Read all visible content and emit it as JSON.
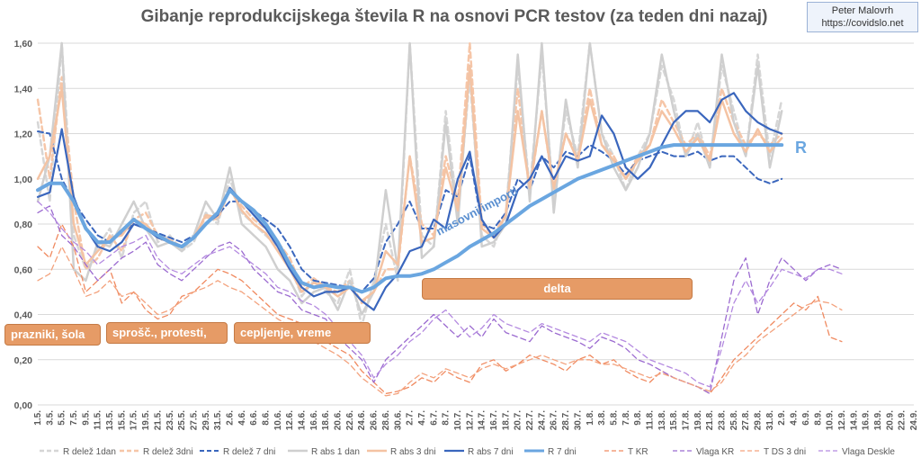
{
  "credit": {
    "name": "Peter Malovrh",
    "url": "https://covidslo.net"
  },
  "annotations": [
    {
      "label": "prazniki, šola"
    },
    {
      "label": "sprošč., protesti,"
    },
    {
      "label": "cepljenje, vreme"
    },
    {
      "label": "delta"
    },
    {
      "label": "masovni importi"
    }
  ],
  "chart_data": {
    "type": "line",
    "title": "Gibanje reprodukcijskega števila R na osnovi PCR testov (za teden dni nazaj)",
    "xlabel": "",
    "ylabel": "",
    "ylim": [
      0,
      1.6
    ],
    "yticks": [
      "0,00",
      "0,20",
      "0,40",
      "0,60",
      "0,80",
      "1,00",
      "1,20",
      "1,40",
      "1,60"
    ],
    "grid": true,
    "legend_position": "bottom",
    "end_label": "R",
    "categories": [
      "1.5.",
      "3.5.",
      "5.5.",
      "7.5.",
      "9.5.",
      "11.5.",
      "13.5.",
      "15.5.",
      "17.5.",
      "19.5.",
      "21.5.",
      "23.5.",
      "25.5.",
      "27.5.",
      "29.5.",
      "31.5.",
      "2.6.",
      "4.6.",
      "6.6.",
      "8.6.",
      "10.6.",
      "12.6.",
      "14.6.",
      "16.6.",
      "18.6.",
      "20.6.",
      "22.6.",
      "24.6.",
      "26.6.",
      "28.6.",
      "30.6.",
      "2.7.",
      "4.7.",
      "6.7.",
      "8.7.",
      "10.7.",
      "12.7.",
      "14.7.",
      "16.7.",
      "18.7.",
      "20.7.",
      "22.7.",
      "24.7.",
      "26.7.",
      "28.7.",
      "30.7.",
      "1.8.",
      "3.8.",
      "5.8.",
      "7.8.",
      "9.8.",
      "11.8.",
      "13.8.",
      "15.8.",
      "17.8.",
      "19.8.",
      "21.8.",
      "23.8.",
      "25.8.",
      "27.8.",
      "29.8.",
      "31.8.",
      "2.9.",
      "4.9.",
      "6.9.",
      "8.9.",
      "10.9.",
      "12.9.",
      "14.9.",
      "16.9.",
      "18.9.",
      "20.9.",
      "22.9.",
      "24.9."
    ],
    "series": [
      {
        "name": "R delež 1dan",
        "color": "#d6d6d6",
        "dash": "dash",
        "width": 2.5,
        "values": [
          1.25,
          0.9,
          1.6,
          0.75,
          0.6,
          0.7,
          0.78,
          0.65,
          0.85,
          0.9,
          0.72,
          0.75,
          0.68,
          0.72,
          0.85,
          0.8,
          1.0,
          0.85,
          0.8,
          0.75,
          0.7,
          0.62,
          0.48,
          0.55,
          0.5,
          0.45,
          0.6,
          0.35,
          0.55,
          0.8,
          0.55,
          1.6,
          0.75,
          0.7,
          1.3,
          0.85,
          1.45,
          0.75,
          0.7,
          0.85,
          1.5,
          0.95,
          1.55,
          0.9,
          1.3,
          1.1,
          1.6,
          1.2,
          1.1,
          0.95,
          1.1,
          1.2,
          1.5,
          1.35,
          1.1,
          1.25,
          1.05,
          1.5,
          1.3,
          1.1,
          1.55,
          1.1,
          1.35,
          null,
          null,
          null,
          null,
          null,
          null,
          null,
          null,
          null,
          null,
          null
        ]
      },
      {
        "name": "R delež 3dni",
        "color": "#f6c6a8",
        "dash": "dash",
        "width": 2.5,
        "values": [
          1.35,
          1.0,
          1.45,
          0.9,
          0.6,
          0.65,
          0.75,
          0.68,
          0.82,
          0.85,
          0.75,
          0.73,
          0.7,
          0.74,
          0.83,
          0.82,
          0.95,
          0.88,
          0.82,
          0.78,
          0.72,
          0.65,
          0.52,
          0.56,
          0.52,
          0.5,
          0.55,
          0.45,
          0.5,
          0.6,
          0.6,
          1.1,
          0.8,
          0.75,
          1.1,
          0.9,
          1.6,
          0.8,
          0.75,
          0.85,
          1.4,
          0.95,
          1.3,
          0.95,
          1.2,
          1.1,
          1.4,
          1.15,
          1.1,
          1.0,
          1.1,
          1.15,
          1.35,
          1.25,
          1.15,
          1.2,
          1.1,
          1.4,
          1.25,
          1.15,
          1.2,
          1.15,
          1.2,
          null,
          null,
          null,
          null,
          null,
          null,
          null,
          null,
          null,
          null,
          null
        ]
      },
      {
        "name": "R delež 7 dni",
        "color": "#3a66bd",
        "dash": "dash",
        "width": 2,
        "values": [
          1.21,
          1.2,
          1.0,
          0.9,
          0.82,
          0.75,
          0.72,
          0.76,
          0.8,
          0.78,
          0.76,
          0.74,
          0.72,
          0.75,
          0.8,
          0.84,
          0.9,
          0.9,
          0.86,
          0.82,
          0.78,
          0.7,
          0.6,
          0.55,
          0.54,
          0.53,
          0.52,
          0.5,
          0.56,
          0.72,
          0.8,
          0.9,
          0.78,
          0.78,
          0.95,
          0.92,
          1.1,
          0.8,
          0.78,
          0.85,
          1.0,
          0.95,
          1.1,
          1.05,
          1.12,
          1.1,
          1.15,
          1.12,
          1.08,
          1.02,
          1.08,
          1.1,
          1.12,
          1.1,
          1.1,
          1.12,
          1.08,
          1.1,
          1.1,
          1.05,
          1.0,
          0.98,
          1.0,
          null,
          null,
          null,
          null,
          null,
          null,
          null,
          null,
          null,
          null,
          null
        ]
      },
      {
        "name": "R abs 1 dan",
        "color": "#cfcfcf",
        "dash": "solid",
        "width": 2.5,
        "values": [
          0.9,
          1.1,
          1.6,
          0.6,
          0.55,
          0.72,
          0.7,
          0.8,
          0.9,
          0.78,
          0.7,
          0.72,
          0.68,
          0.75,
          0.9,
          0.82,
          1.05,
          0.8,
          0.75,
          0.7,
          0.6,
          0.55,
          0.45,
          0.5,
          0.52,
          0.42,
          0.55,
          0.4,
          0.5,
          0.95,
          0.6,
          1.6,
          0.65,
          0.7,
          1.25,
          0.8,
          1.5,
          0.7,
          0.72,
          0.8,
          1.55,
          0.9,
          1.6,
          0.85,
          1.35,
          1.05,
          1.6,
          1.2,
          1.05,
          0.95,
          1.05,
          1.2,
          1.55,
          1.3,
          1.1,
          1.2,
          1.05,
          1.55,
          1.25,
          1.1,
          1.5,
          1.05,
          1.3,
          null,
          null,
          null,
          null,
          null,
          null,
          null,
          null,
          null,
          null,
          null
        ]
      },
      {
        "name": "R abs 3 dni",
        "color": "#f4c3a3",
        "dash": "solid",
        "width": 2.5,
        "values": [
          1.0,
          1.1,
          1.4,
          0.8,
          0.62,
          0.68,
          0.74,
          0.75,
          0.82,
          0.8,
          0.74,
          0.72,
          0.7,
          0.74,
          0.84,
          0.83,
          0.96,
          0.86,
          0.8,
          0.76,
          0.68,
          0.6,
          0.5,
          0.54,
          0.52,
          0.48,
          0.52,
          0.46,
          0.5,
          0.68,
          0.62,
          1.1,
          0.72,
          0.74,
          1.05,
          0.86,
          1.5,
          0.78,
          0.74,
          0.84,
          1.3,
          0.96,
          1.3,
          0.96,
          1.2,
          1.08,
          1.35,
          1.15,
          1.08,
          1.0,
          1.08,
          1.15,
          1.3,
          1.22,
          1.12,
          1.18,
          1.08,
          1.35,
          1.2,
          1.12,
          1.22,
          1.12,
          1.18,
          null,
          null,
          null,
          null,
          null,
          null,
          null,
          null,
          null,
          null,
          null
        ]
      },
      {
        "name": "R abs 7 dni",
        "color": "#3a66bd",
        "dash": "solid",
        "width": 2.2,
        "values": [
          0.92,
          0.94,
          1.22,
          0.92,
          0.78,
          0.7,
          0.68,
          0.72,
          0.8,
          0.78,
          0.74,
          0.72,
          0.7,
          0.74,
          0.8,
          0.84,
          0.96,
          0.9,
          0.84,
          0.78,
          0.7,
          0.6,
          0.52,
          0.48,
          0.5,
          0.5,
          0.52,
          0.46,
          0.42,
          0.52,
          0.58,
          0.68,
          0.7,
          0.82,
          0.78,
          1.0,
          1.12,
          0.82,
          0.74,
          0.8,
          0.95,
          1.0,
          1.1,
          1.0,
          1.1,
          1.08,
          1.1,
          1.28,
          1.2,
          1.05,
          1.0,
          1.05,
          1.15,
          1.25,
          1.3,
          1.3,
          1.25,
          1.35,
          1.38,
          1.3,
          1.25,
          1.22,
          1.2,
          null,
          null,
          null,
          null,
          null,
          null,
          null,
          null,
          null,
          null,
          null
        ]
      },
      {
        "name": "R 7 dni",
        "color": "#6aa6e0",
        "dash": "solid",
        "width": 4,
        "values": [
          0.95,
          0.98,
          0.98,
          0.9,
          0.78,
          0.72,
          0.72,
          0.77,
          0.82,
          0.78,
          0.75,
          0.72,
          0.7,
          0.74,
          0.8,
          0.85,
          0.95,
          0.9,
          0.86,
          0.8,
          0.72,
          0.62,
          0.54,
          0.52,
          0.53,
          0.52,
          0.52,
          0.5,
          0.52,
          0.56,
          0.57,
          0.57,
          0.58,
          0.6,
          0.63,
          0.66,
          0.7,
          0.73,
          0.76,
          0.8,
          0.84,
          0.88,
          0.91,
          0.94,
          0.97,
          1.0,
          1.02,
          1.04,
          1.06,
          1.08,
          1.1,
          1.12,
          1.14,
          1.15,
          1.15,
          1.15,
          1.15,
          1.15,
          1.15,
          1.15,
          1.15,
          1.15,
          1.15,
          null,
          null,
          null,
          null,
          null,
          null,
          null,
          null,
          null,
          null,
          null
        ]
      },
      {
        "name": "T KR",
        "color": "#f08a60",
        "dash": "dash",
        "width": 1.3,
        "values": [
          0.7,
          0.65,
          0.8,
          0.7,
          0.5,
          0.55,
          0.6,
          0.45,
          0.5,
          0.42,
          0.38,
          0.4,
          0.48,
          0.5,
          0.55,
          0.6,
          0.58,
          0.55,
          0.5,
          0.45,
          0.4,
          0.38,
          0.36,
          0.32,
          0.28,
          0.25,
          0.22,
          0.15,
          0.1,
          0.05,
          0.06,
          0.08,
          0.12,
          0.1,
          0.15,
          0.12,
          0.1,
          0.18,
          0.2,
          0.15,
          0.18,
          0.22,
          0.2,
          0.18,
          0.15,
          0.2,
          0.22,
          0.18,
          0.2,
          0.15,
          0.12,
          0.1,
          0.15,
          0.12,
          0.1,
          0.08,
          0.05,
          0.12,
          0.2,
          0.25,
          0.3,
          0.35,
          0.4,
          0.45,
          0.42,
          0.48,
          0.3,
          0.28,
          null,
          null,
          null,
          null,
          null,
          null
        ]
      },
      {
        "name": "Vlaga KR",
        "color": "#9b6ad0",
        "dash": "dash",
        "width": 1.3,
        "values": [
          0.85,
          0.88,
          0.75,
          0.7,
          0.62,
          0.55,
          0.6,
          0.65,
          0.68,
          0.72,
          0.62,
          0.58,
          0.55,
          0.6,
          0.65,
          0.7,
          0.72,
          0.68,
          0.6,
          0.55,
          0.5,
          0.48,
          0.42,
          0.4,
          0.38,
          0.3,
          0.25,
          0.2,
          0.1,
          0.2,
          0.25,
          0.3,
          0.35,
          0.4,
          0.35,
          0.3,
          0.35,
          0.3,
          0.38,
          0.32,
          0.3,
          0.28,
          0.35,
          0.32,
          0.3,
          0.28,
          0.25,
          0.3,
          0.28,
          0.25,
          0.2,
          0.18,
          0.15,
          0.12,
          0.1,
          0.08,
          0.05,
          0.3,
          0.55,
          0.65,
          0.4,
          0.55,
          0.65,
          0.6,
          0.55,
          0.6,
          0.62,
          0.6,
          null,
          null,
          null,
          null,
          null,
          null
        ]
      },
      {
        "name": "T DS 3 dni",
        "color": "#f3a27d",
        "dash": "dash",
        "width": 1.3,
        "values": [
          0.55,
          0.58,
          0.7,
          0.6,
          0.48,
          0.5,
          0.55,
          0.48,
          0.5,
          0.45,
          0.4,
          0.42,
          0.46,
          0.5,
          0.52,
          0.55,
          0.52,
          0.5,
          0.46,
          0.42,
          0.38,
          0.35,
          0.3,
          0.28,
          0.25,
          0.22,
          0.18,
          0.12,
          0.08,
          0.04,
          0.05,
          0.1,
          0.14,
          0.12,
          0.16,
          0.14,
          0.12,
          0.16,
          0.18,
          0.16,
          0.18,
          0.2,
          0.22,
          0.2,
          0.18,
          0.2,
          0.2,
          0.18,
          0.18,
          0.16,
          0.14,
          0.12,
          0.14,
          0.12,
          0.1,
          0.08,
          0.06,
          0.1,
          0.18,
          0.22,
          0.28,
          0.32,
          0.36,
          0.4,
          0.44,
          0.46,
          0.45,
          0.42,
          null,
          null,
          null,
          null,
          null,
          null
        ]
      },
      {
        "name": "Vlaga Deskle",
        "color": "#b48ae0",
        "dash": "dash",
        "width": 1.3,
        "values": [
          0.9,
          0.85,
          0.78,
          0.72,
          0.68,
          0.62,
          0.66,
          0.7,
          0.72,
          0.75,
          0.65,
          0.6,
          0.58,
          0.62,
          0.66,
          0.68,
          0.7,
          0.66,
          0.62,
          0.58,
          0.52,
          0.5,
          0.46,
          0.44,
          0.4,
          0.34,
          0.28,
          0.22,
          0.12,
          0.18,
          0.22,
          0.28,
          0.32,
          0.38,
          0.42,
          0.36,
          0.3,
          0.34,
          0.4,
          0.36,
          0.34,
          0.32,
          0.36,
          0.34,
          0.32,
          0.3,
          0.28,
          0.32,
          0.3,
          0.28,
          0.24,
          0.2,
          0.18,
          0.16,
          0.14,
          0.1,
          0.08,
          0.25,
          0.45,
          0.55,
          0.45,
          0.52,
          0.6,
          0.58,
          0.56,
          0.6,
          0.6,
          0.58,
          null,
          null,
          null,
          null,
          null,
          null
        ]
      }
    ]
  }
}
